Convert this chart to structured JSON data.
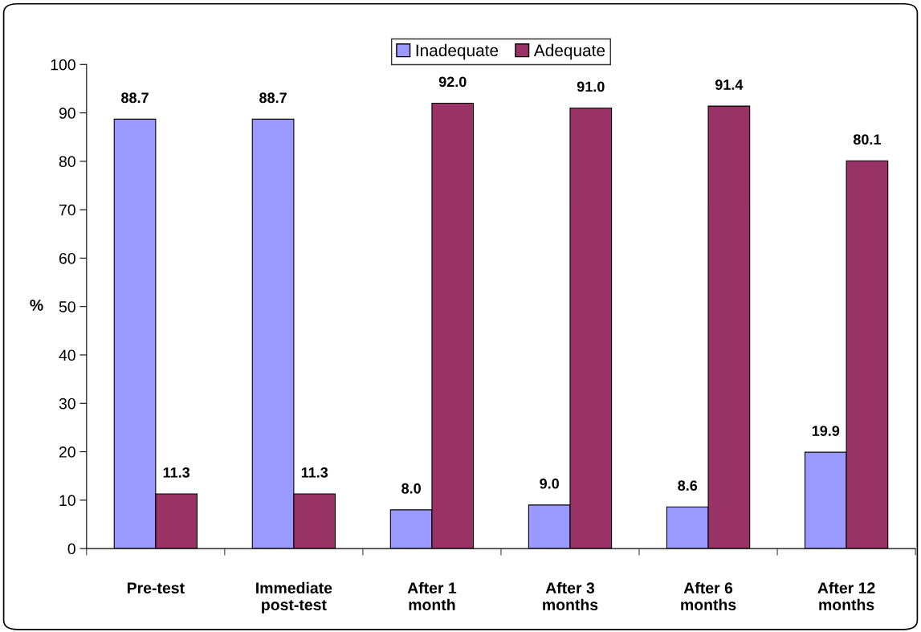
{
  "chart_data": {
    "type": "bar",
    "ylabel": "%",
    "categories": [
      "Pre-test",
      "Immediate\npost-test",
      "After 1\nmonth",
      "After 3\nmonths",
      "After 6\nmonths",
      "After 12\nmonths"
    ],
    "series": [
      {
        "name": "Inadequate",
        "color": "#9999ff",
        "values": [
          88.7,
          88.7,
          8.0,
          9.0,
          8.6,
          19.9
        ],
        "value_labels": [
          "88.7",
          "88.7",
          "8.0",
          "9.0",
          "8.6",
          "19.9"
        ]
      },
      {
        "name": "Adequate",
        "color": "#993366",
        "values": [
          11.3,
          11.3,
          92.0,
          91.0,
          91.4,
          80.1
        ],
        "value_labels": [
          "11.3",
          "11.3",
          "92.0",
          "91.0",
          "91.4",
          "80.1"
        ]
      }
    ],
    "ylim": [
      0,
      100
    ],
    "yticks": [
      0,
      10,
      20,
      30,
      40,
      50,
      60,
      70,
      80,
      90,
      100
    ],
    "legend": "top",
    "grid": false
  }
}
